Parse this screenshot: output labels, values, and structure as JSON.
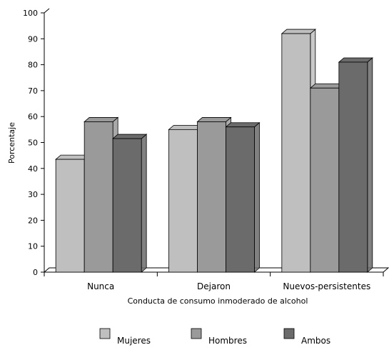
{
  "chart_data": {
    "type": "bar",
    "categories": [
      "Nunca",
      "Dejaron",
      "Nuevos-persistentes"
    ],
    "series": [
      {
        "name": "Mujeres",
        "values": [
          43.5,
          55,
          92
        ],
        "color": "#bfbfbf"
      },
      {
        "name": "Hombres",
        "values": [
          58,
          58,
          71
        ],
        "color": "#9a9a9a"
      },
      {
        "name": "Ambos",
        "values": [
          51.5,
          56,
          81
        ],
        "color": "#6b6b6b"
      }
    ],
    "xlabel": "Conducta de consumo inmoderado de alcohol",
    "ylabel": "Porcentaje",
    "ylim": [
      0,
      100
    ],
    "yticks": [
      0,
      10,
      20,
      30,
      40,
      50,
      60,
      70,
      80,
      90,
      100
    ],
    "grid": false,
    "legend_position": "bottom",
    "style": "3d-bar"
  }
}
